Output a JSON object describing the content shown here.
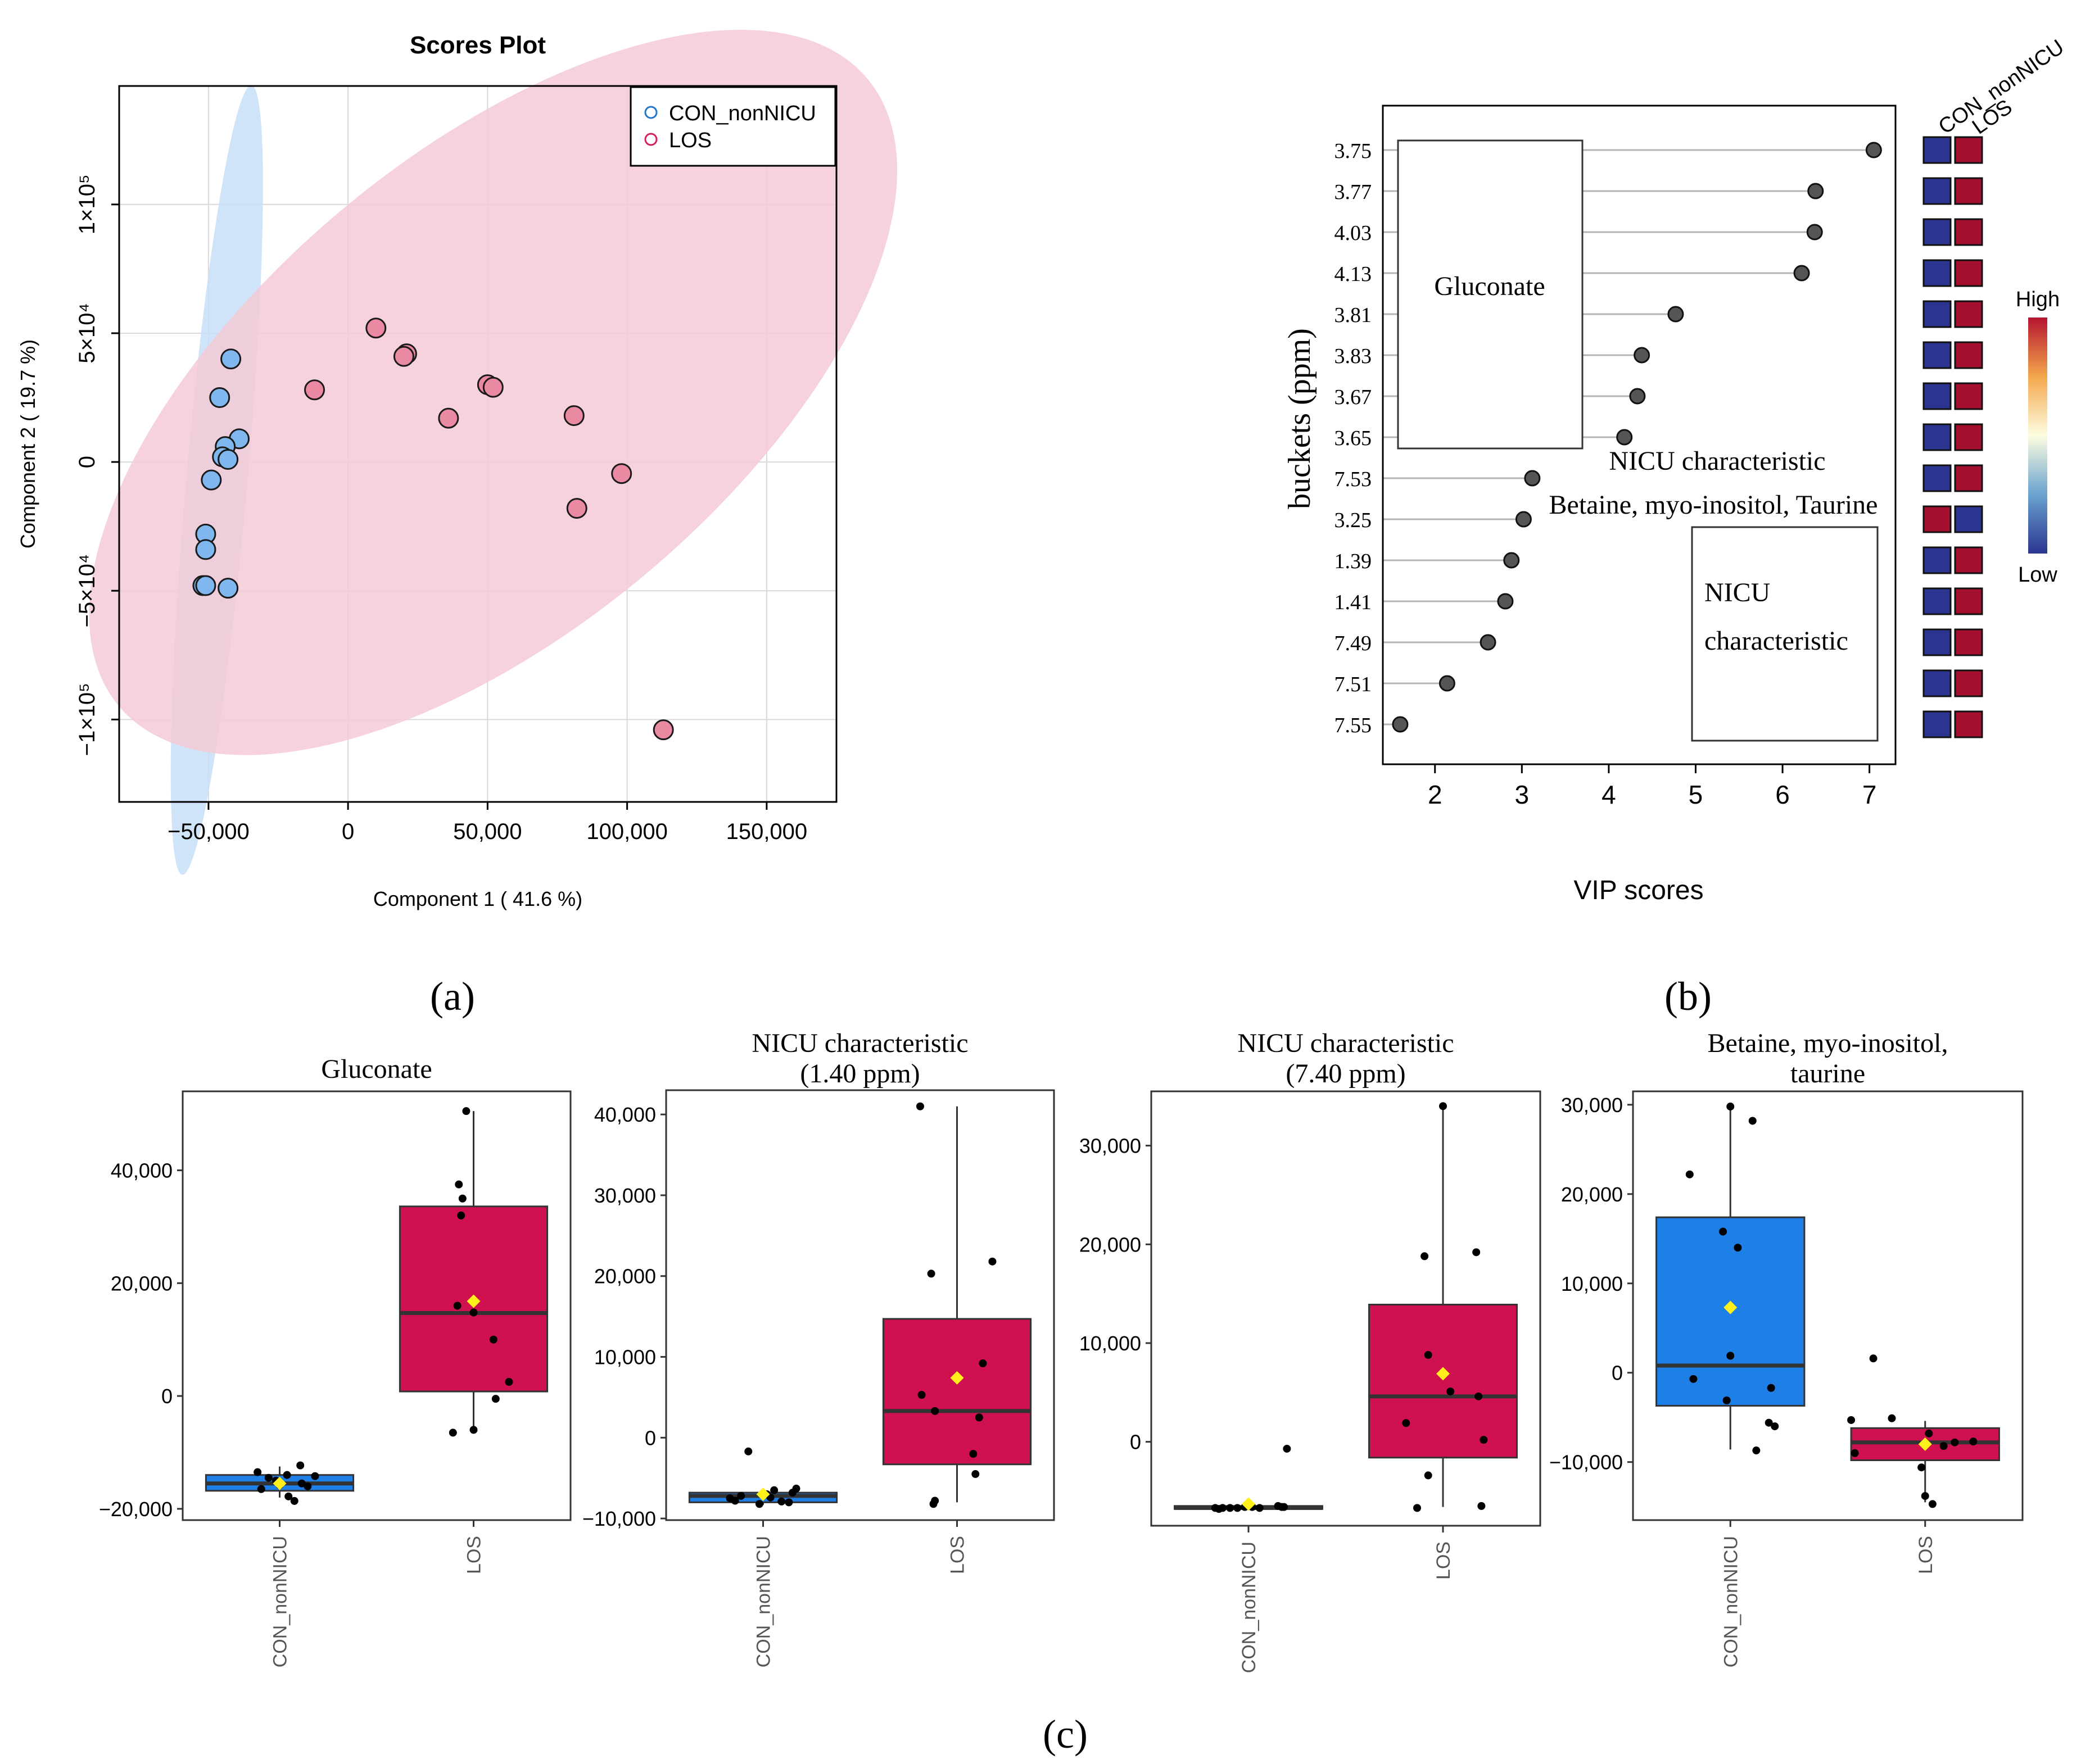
{
  "chart_data": [
    {
      "panel": "(a)",
      "type": "scatter",
      "title": "Scores Plot",
      "xlabel": "Component 1 ( 41.6 %)",
      "ylabel": "Component 2 ( 19.7 %)",
      "xlim": [
        -82000,
        175000
      ],
      "ylim": [
        -132000,
        146000
      ],
      "xticks": [
        -50000,
        0,
        50000,
        100000,
        150000
      ],
      "xtick_labels": [
        "−50,000",
        "0",
        "50,000",
        "100,000",
        "150,000"
      ],
      "yticks": [
        100000,
        50000,
        0,
        -50000,
        -100000
      ],
      "ytick_labels": [
        "1×10⁵",
        "5×10⁴",
        "0",
        "−5×10⁴",
        "−1×10⁵"
      ],
      "grid": true,
      "legend_position": "top-right",
      "series": [
        {
          "name": "CON_nonNICU",
          "fill": "#7fb7ee",
          "edge": "#1e78d2",
          "ellipse_fill": "#c7dff7",
          "ellipse": {
            "cx": -47000,
            "cy": -7000,
            "rx": 142000,
            "ry": 11000,
            "angle": -85
          },
          "x": [
            -42000,
            -46000,
            -39000,
            -44000,
            -45000,
            -43000,
            -49000,
            -51000,
            -51000,
            -52000,
            -51000,
            -43000
          ],
          "y": [
            40000,
            25000,
            9000,
            6000,
            2000,
            1000,
            -7000,
            -28000,
            -34000,
            -48000,
            -48000,
            -49000
          ]
        },
        {
          "name": "LOS",
          "fill": "#ea8aa2",
          "edge": "#d81e5b",
          "ellipse_fill": "#f4cad6",
          "ellipse": {
            "cx": 52000,
            "cy": 27000,
            "rx": 175000,
            "ry": 85000,
            "angle": -40
          },
          "x": [
            10000,
            -12000,
            21000,
            20000,
            36000,
            50000,
            52000,
            81000,
            98000,
            82000,
            113000
          ],
          "y": [
            52000,
            28000,
            42000,
            41000,
            17000,
            30000,
            29000,
            18000,
            -4500,
            -18000,
            -104000
          ]
        }
      ]
    },
    {
      "panel": "(b)",
      "type": "dot",
      "xlabel": "VIP scores",
      "ylabel": "buckets (ppm)",
      "xlim": [
        1.4,
        7.3
      ],
      "xticks": [
        2,
        3,
        4,
        5,
        6,
        7
      ],
      "categories": [
        "3.75",
        "3.77",
        "4.03",
        "4.13",
        "3.81",
        "3.83",
        "3.67",
        "3.65",
        "7.53",
        "3.25",
        "1.39",
        "1.41",
        "7.49",
        "7.51",
        "7.55"
      ],
      "values": [
        7.05,
        6.38,
        6.37,
        6.22,
        4.77,
        4.38,
        4.33,
        4.18,
        3.12,
        3.02,
        2.88,
        2.81,
        2.61,
        2.14,
        1.6
      ],
      "heatmap_columns": [
        "CON_nonNICU",
        "LOS"
      ],
      "heatmap_colors": [
        [
          "#2b3590",
          "#a50f2f"
        ],
        [
          "#2b3590",
          "#a50f2f"
        ],
        [
          "#2b3590",
          "#a50f2f"
        ],
        [
          "#2b3590",
          "#a50f2f"
        ],
        [
          "#2b3590",
          "#a50f2f"
        ],
        [
          "#2b3590",
          "#a50f2f"
        ],
        [
          "#2b3590",
          "#a50f2f"
        ],
        [
          "#2b3590",
          "#a50f2f"
        ],
        [
          "#2b3590",
          "#a50f2f"
        ],
        [
          "#a50f2f",
          "#2b3590"
        ],
        [
          "#2b3590",
          "#a50f2f"
        ],
        [
          "#2b3590",
          "#a50f2f"
        ],
        [
          "#2b3590",
          "#a50f2f"
        ],
        [
          "#2b3590",
          "#a50f2f"
        ],
        [
          "#2b3590",
          "#a50f2f"
        ]
      ],
      "colorbar_high": "High",
      "colorbar_low": "Low",
      "annotations": [
        "Gluconate",
        "NICU characteristic",
        "Betaine, myo-inositol, Taurine",
        "NICU",
        "characteristic"
      ]
    },
    {
      "panel": "(c)",
      "type": "box",
      "title": "Gluconate",
      "categories": [
        "CON_nonNICU",
        "LOS"
      ],
      "ylim": [
        -22000,
        54000
      ],
      "yticks": [
        40000,
        20000,
        0,
        -20000
      ],
      "ytick_labels": [
        "40,000",
        "20,000",
        "0",
        "−20,000"
      ],
      "boxes": [
        {
          "group": "CON_nonNICU",
          "q1": -16800,
          "median": -15500,
          "q3": -14000,
          "whisker_low": -18000,
          "whisker_high": -12500,
          "mean": -15500,
          "color": "#1e7fe6",
          "points": [
            [
              -0.3,
              -13500
            ],
            [
              -0.25,
              -16500
            ],
            [
              -0.15,
              -14500
            ],
            [
              0,
              -15800
            ],
            [
              0.1,
              -14000
            ],
            [
              0.12,
              -17800
            ],
            [
              0.2,
              -18600
            ],
            [
              0.28,
              -12300
            ],
            [
              0.38,
              -16000
            ],
            [
              0.48,
              -14200
            ],
            [
              -0.05,
              -15000
            ],
            [
              0.3,
              -15500
            ]
          ]
        },
        {
          "group": "LOS",
          "q1": 800,
          "median": 14700,
          "q3": 33600,
          "whisker_low": -6500,
          "whisker_high": 50500,
          "mean": 16800,
          "color": "#d0114f",
          "points": [
            [
              -0.1,
              50500
            ],
            [
              -0.2,
              37500
            ],
            [
              -0.15,
              35000
            ],
            [
              -0.17,
              32000
            ],
            [
              -0.22,
              16000
            ],
            [
              0,
              14800
            ],
            [
              0.27,
              10000
            ],
            [
              0.3,
              -500
            ],
            [
              0.48,
              2500
            ],
            [
              -0.28,
              -6500
            ],
            [
              0,
              -6000
            ]
          ]
        }
      ]
    },
    {
      "panel": "(c)",
      "type": "box",
      "title": "NICU characteristic\n(1.40 ppm)",
      "categories": [
        "CON_nonNICU",
        "LOS"
      ],
      "ylim": [
        -10200,
        43000
      ],
      "yticks": [
        40000,
        30000,
        20000,
        10000,
        0,
        -10000
      ],
      "ytick_labels": [
        "40,000",
        "30,000",
        "20,000",
        "10,000",
        "0",
        "−10,000"
      ],
      "boxes": [
        {
          "group": "CON_nonNICU",
          "q1": -8000,
          "median": -7200,
          "q3": -6800,
          "whisker_low": -8300,
          "whisker_high": -6500,
          "mean": -7000,
          "color": "#1e7fe6",
          "points": [
            [
              -0.45,
              -7500
            ],
            [
              -0.3,
              -7200
            ],
            [
              -0.2,
              -1700
            ],
            [
              -0.05,
              -8200
            ],
            [
              0.05,
              -7000
            ],
            [
              0.15,
              -6500
            ],
            [
              0.25,
              -7900
            ],
            [
              0.35,
              -8000
            ],
            [
              0.45,
              -6300
            ],
            [
              -0.38,
              -7800
            ],
            [
              0.4,
              -6800
            ],
            [
              0.1,
              -7400
            ]
          ]
        },
        {
          "group": "LOS",
          "q1": -3300,
          "median": 3300,
          "q3": 14700,
          "whisker_low": -8000,
          "whisker_high": 41000,
          "mean": 7400,
          "color": "#d0114f",
          "points": [
            [
              -0.5,
              41000
            ],
            [
              -0.35,
              20300
            ],
            [
              -0.3,
              3300
            ],
            [
              -0.48,
              5300
            ],
            [
              0.35,
              9200
            ],
            [
              0.48,
              21800
            ],
            [
              0.3,
              2500
            ],
            [
              0.25,
              -4500
            ],
            [
              -0.3,
              -7800
            ],
            [
              -0.32,
              -8200
            ],
            [
              0.22,
              -2000
            ]
          ]
        }
      ]
    },
    {
      "panel": "(c)",
      "type": "box",
      "title": "NICU characteristic\n(7.40 ppm)",
      "categories": [
        "CON_nonNICU",
        "LOS"
      ],
      "ylim": [
        -8500,
        35500
      ],
      "yticks": [
        30000,
        20000,
        10000,
        0
      ],
      "ytick_labels": [
        "30,000",
        "20,000",
        "10,000",
        "0"
      ],
      "boxes": [
        {
          "group": "CON_nonNICU",
          "q1": -6800,
          "median": -6700,
          "q3": -6500,
          "whisker_low": -6900,
          "whisker_high": -6300,
          "mean": -6300,
          "color": "#1e7fe6",
          "points": [
            [
              -0.45,
              -6700
            ],
            [
              -0.35,
              -6700
            ],
            [
              -0.25,
              -6700
            ],
            [
              -0.15,
              -6700
            ],
            [
              -0.05,
              -6600
            ],
            [
              0.05,
              -6600
            ],
            [
              0.15,
              -6700
            ],
            [
              0.4,
              -6500
            ],
            [
              0.48,
              -6600
            ],
            [
              0.52,
              -700
            ],
            [
              -0.4,
              -6800
            ],
            [
              0.45,
              -6600
            ]
          ]
        },
        {
          "group": "LOS",
          "q1": -1600,
          "median": 4600,
          "q3": 13900,
          "whisker_low": -6600,
          "whisker_high": 34000,
          "mean": 6900,
          "color": "#d0114f",
          "points": [
            [
              0,
              34000
            ],
            [
              -0.25,
              18800
            ],
            [
              0.45,
              19200
            ],
            [
              -0.2,
              8800
            ],
            [
              0.1,
              5100
            ],
            [
              0.48,
              4600
            ],
            [
              0.55,
              200
            ],
            [
              -0.5,
              1900
            ],
            [
              -0.2,
              -3400
            ],
            [
              -0.35,
              -6700
            ],
            [
              0.52,
              -6500
            ]
          ]
        }
      ]
    },
    {
      "panel": "(c)",
      "type": "box",
      "title": "Betaine, myo-inositol,\ntaurine",
      "categories": [
        "CON_nonNICU",
        "LOS"
      ],
      "ylim": [
        -16500,
        31500
      ],
      "yticks": [
        30000,
        20000,
        10000,
        0,
        -10000
      ],
      "ytick_labels": [
        "30,000",
        "20,000",
        "10,000",
        "0",
        "−10,000"
      ],
      "boxes": [
        {
          "group": "CON_nonNICU",
          "q1": -3700,
          "median": 800,
          "q3": 17400,
          "whisker_low": -8600,
          "whisker_high": 29700,
          "mean": 7300,
          "color": "#1e7fe6",
          "points": [
            [
              0,
              29800
            ],
            [
              0.3,
              28200
            ],
            [
              -0.55,
              22200
            ],
            [
              -0.1,
              15800
            ],
            [
              0.1,
              14000
            ],
            [
              0,
              1900
            ],
            [
              -0.05,
              -3100
            ],
            [
              -0.5,
              -700
            ],
            [
              0.55,
              -1700
            ],
            [
              0.52,
              -5600
            ],
            [
              0.6,
              -6000
            ],
            [
              0.35,
              -8700
            ]
          ]
        },
        {
          "group": "LOS",
          "q1": -9800,
          "median": -7800,
          "q3": -6200,
          "whisker_low": -14500,
          "whisker_high": -5400,
          "mean": -8000,
          "color": "#d0114f",
          "points": [
            [
              -0.7,
              1600
            ],
            [
              -0.45,
              -5100
            ],
            [
              -1.0,
              -5300
            ],
            [
              0.05,
              -6800
            ],
            [
              -0.95,
              -9000
            ],
            [
              0.25,
              -8200
            ],
            [
              0.4,
              -7800
            ],
            [
              0.65,
              -7700
            ],
            [
              -0.05,
              -10600
            ],
            [
              0,
              -13800
            ],
            [
              0.1,
              -14700
            ]
          ]
        }
      ]
    }
  ],
  "panel_labels": {
    "a": "(a)",
    "b": "(b)",
    "c": "(c)"
  }
}
